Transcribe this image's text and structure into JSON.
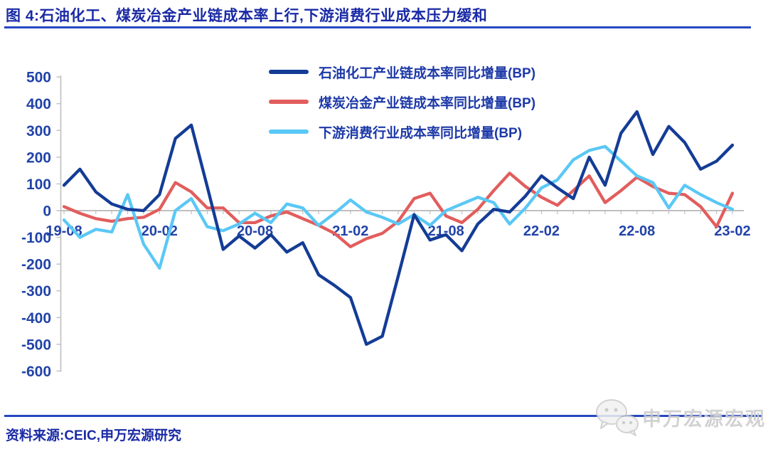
{
  "title": "图 4:石油化工、煤炭冶金产业链成本率上行,下游消费行业成本压力缓和",
  "footer": {
    "source_label": "资料来源:CEIC,申万宏源研究"
  },
  "watermark": {
    "icon": "wechat-icon",
    "text": "申万宏源宏观"
  },
  "colors": {
    "accent_blue_text": "#1A2AA5",
    "axis_label_blue": "#2143A8",
    "rule_blue": "#2747C0",
    "axis_gray": "#BFBFBF",
    "watermark_gray": "#CBCBCB"
  },
  "chart_data": {
    "type": "line",
    "title": "",
    "xlabel": "",
    "ylabel": "",
    "ylim": [
      -600,
      500
    ],
    "y_ticks": [
      500,
      400,
      300,
      200,
      100,
      0,
      -100,
      -200,
      -300,
      -400,
      -500,
      -600
    ],
    "grid": "zero-line-only",
    "legend_position": "top-center",
    "x": [
      "19-08",
      "19-09",
      "19-10",
      "19-11",
      "19-12",
      "20-01",
      "20-02",
      "20-03",
      "20-04",
      "20-05",
      "20-06",
      "20-07",
      "20-08",
      "20-09",
      "20-10",
      "20-11",
      "20-12",
      "21-01",
      "21-02",
      "21-03",
      "21-04",
      "21-05",
      "21-06",
      "21-07",
      "21-08",
      "21-09",
      "21-10",
      "21-11",
      "21-12",
      "22-01",
      "22-02",
      "22-03",
      "22-04",
      "22-05",
      "22-06",
      "22-07",
      "22-08",
      "22-09",
      "22-10",
      "22-11",
      "22-12",
      "23-01",
      "23-02"
    ],
    "x_tick_labels": [
      "19-08",
      "20-02",
      "20-08",
      "21-02",
      "21-08",
      "22-02",
      "22-08",
      "23-02"
    ],
    "series": [
      {
        "name": "石油化工产业链成本率同比增量(BP)",
        "color": "#143C96",
        "values": [
          95,
          155,
          70,
          25,
          5,
          0,
          60,
          270,
          320,
          90,
          -145,
          -95,
          -140,
          -90,
          -155,
          -120,
          -240,
          -280,
          -325,
          -500,
          -470,
          -245,
          -15,
          -110,
          -90,
          -150,
          -50,
          5,
          -5,
          55,
          130,
          85,
          45,
          200,
          95,
          290,
          370,
          210,
          315,
          255,
          155,
          185,
          245
        ]
      },
      {
        "name": "煤炭冶金产业链成本率同比增量(BP)",
        "color": "#E25D5D",
        "values": [
          15,
          -10,
          -30,
          -40,
          -30,
          -25,
          5,
          105,
          70,
          10,
          10,
          -45,
          -45,
          -20,
          -5,
          -30,
          -55,
          -85,
          -135,
          -105,
          -85,
          -40,
          45,
          65,
          -20,
          -45,
          5,
          75,
          140,
          90,
          50,
          20,
          75,
          130,
          30,
          75,
          125,
          90,
          65,
          60,
          15,
          -60,
          65
        ]
      },
      {
        "name": "下游消费行业成本率同比增量(BP)",
        "color": "#5AC8F5",
        "values": [
          -35,
          -100,
          -70,
          -80,
          60,
          -125,
          -215,
          0,
          45,
          -60,
          -75,
          -50,
          -10,
          -45,
          25,
          10,
          -55,
          -10,
          40,
          -5,
          -25,
          -50,
          -15,
          -55,
          0,
          25,
          50,
          30,
          -50,
          10,
          85,
          115,
          190,
          225,
          240,
          185,
          130,
          105,
          10,
          95,
          60,
          30,
          5
        ]
      }
    ]
  }
}
